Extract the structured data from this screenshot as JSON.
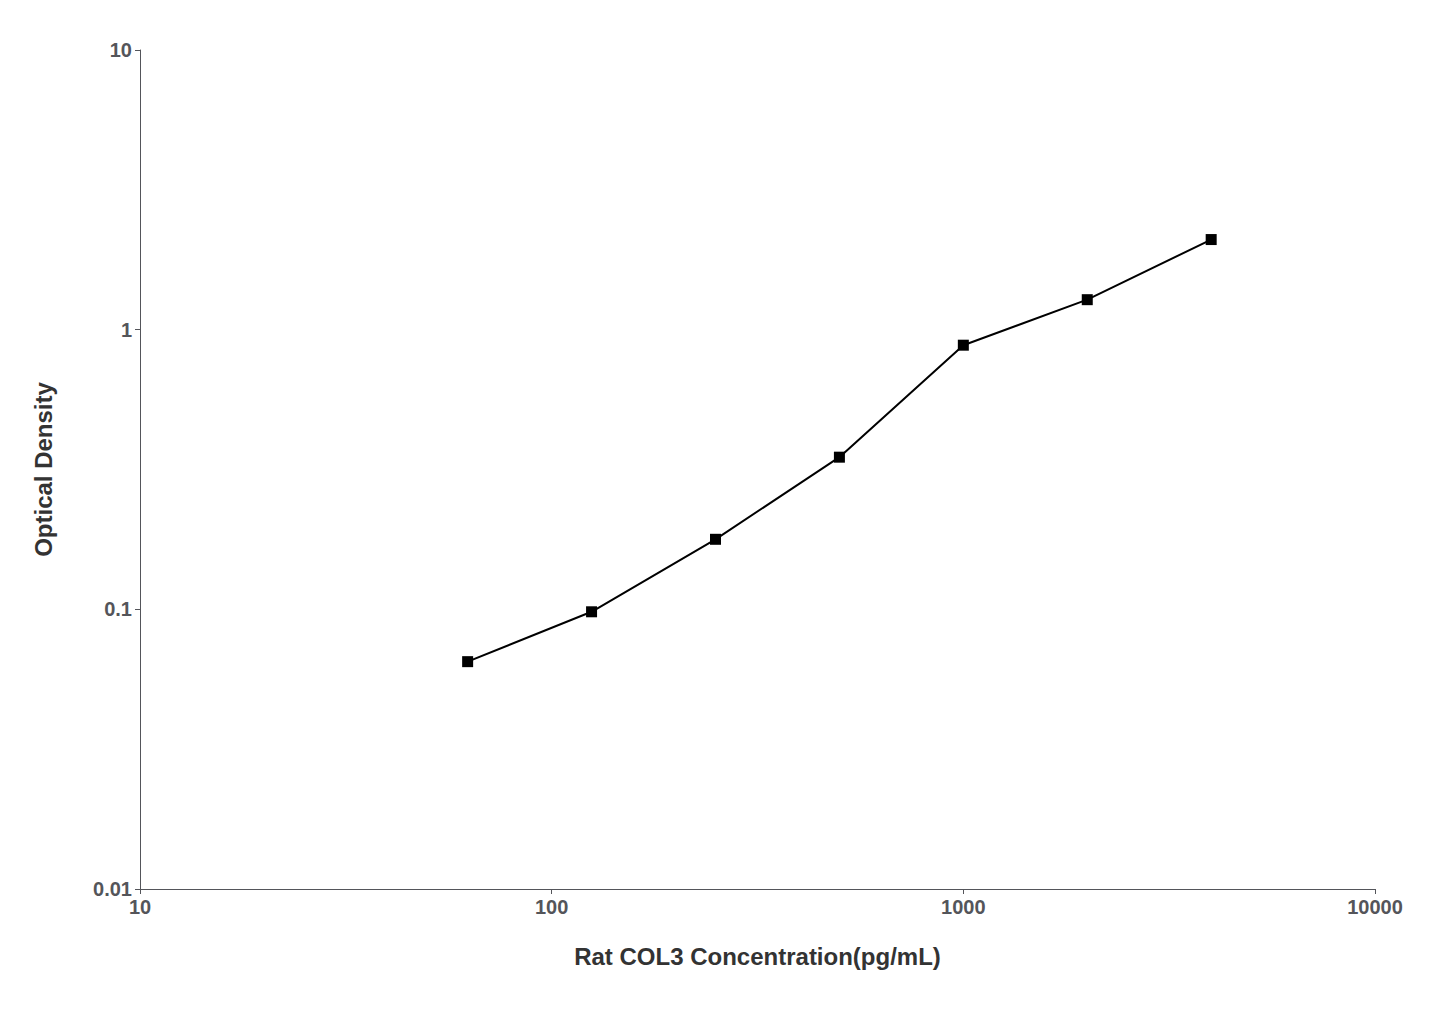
{
  "chart_data": {
    "type": "line",
    "x": [
      62.5,
      125,
      250,
      500,
      1000,
      2000,
      4000
    ],
    "values": [
      0.065,
      0.098,
      0.178,
      0.35,
      0.88,
      1.28,
      2.1
    ],
    "xlabel": "Rat COL3 Concentration(pg/mL)",
    "ylabel": "Optical Density",
    "xlim": [
      10,
      10000
    ],
    "ylim": [
      0.01,
      10
    ],
    "xticks": [
      10,
      100,
      1000,
      10000
    ],
    "yticks": [
      0.01,
      0.1,
      1,
      10
    ],
    "log": true,
    "grid": false,
    "color": "#000000",
    "marker": "square"
  }
}
